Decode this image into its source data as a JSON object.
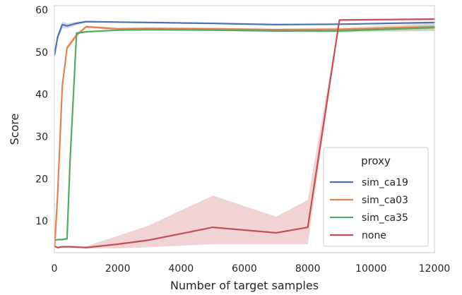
{
  "chart_data": {
    "type": "line",
    "xlabel": "Number of target samples",
    "ylabel": "Score",
    "xlim": [
      0,
      12000
    ],
    "ylim": [
      2.5,
      61
    ],
    "xticks": [
      0,
      2000,
      4000,
      6000,
      8000,
      10000,
      12000
    ],
    "xtick_labels": [
      "0",
      "2000",
      "4000",
      "6000",
      "8000",
      "10000",
      "12000"
    ],
    "yticks": [
      10,
      20,
      30,
      40,
      50,
      60
    ],
    "ytick_labels": [
      "10",
      "20",
      "30",
      "40",
      "50",
      "60"
    ],
    "grid": false,
    "legend": {
      "title": "proxy",
      "placement": "lower-right"
    },
    "series": [
      {
        "name": "sim_ca19",
        "color": "#4c72b0",
        "x": [
          10,
          100,
          250,
          400,
          700,
          1000,
          2000,
          3000,
          5000,
          7000,
          9000,
          12000
        ],
        "y": [
          49.5,
          53.5,
          56.5,
          56.2,
          56.8,
          57.2,
          57.1,
          57.0,
          56.8,
          56.5,
          56.6,
          57.0
        ],
        "lower": [
          48.5,
          52.8,
          55.6,
          55.6,
          56.4,
          57.0,
          57.0,
          56.9,
          56.7,
          56.4,
          56.5,
          56.8
        ],
        "upper": [
          50.5,
          54.2,
          57.2,
          56.8,
          57.2,
          57.4,
          57.2,
          57.1,
          56.9,
          56.6,
          56.7,
          57.2
        ]
      },
      {
        "name": "sim_ca03",
        "color": "#dd8452",
        "x": [
          10,
          100,
          250,
          400,
          700,
          1000,
          2000,
          3000,
          5000,
          7000,
          9000,
          12000
        ],
        "y": [
          4.0,
          16.0,
          42.0,
          51.0,
          54.0,
          56.0,
          55.5,
          55.6,
          55.5,
          55.3,
          55.4,
          56.0
        ],
        "lower": [
          3.5,
          14.0,
          40.5,
          50.3,
          53.5,
          55.7,
          55.2,
          55.3,
          55.2,
          55.0,
          55.0,
          55.0
        ],
        "upper": [
          4.5,
          18.0,
          43.5,
          51.7,
          54.5,
          56.3,
          55.8,
          55.9,
          55.8,
          55.6,
          55.8,
          57.0
        ]
      },
      {
        "name": "sim_ca35",
        "color": "#55a868",
        "x": [
          10,
          100,
          250,
          400,
          500,
          700,
          1000,
          2000,
          3000,
          5000,
          7000,
          9000,
          12000
        ],
        "y": [
          5.4,
          5.6,
          5.6,
          5.8,
          25.0,
          54.5,
          54.8,
          55.2,
          55.3,
          55.2,
          55.0,
          55.0,
          55.8
        ],
        "lower": [
          5.2,
          5.4,
          5.4,
          5.6,
          24.0,
          54.2,
          54.6,
          55.0,
          55.1,
          55.0,
          54.8,
          54.6,
          55.0
        ],
        "upper": [
          5.6,
          5.8,
          5.8,
          6.0,
          26.0,
          54.8,
          55.0,
          55.4,
          55.5,
          55.4,
          55.2,
          55.4,
          56.6
        ]
      },
      {
        "name": "none",
        "color": "#c44e52",
        "x": [
          10,
          100,
          250,
          500,
          1000,
          2000,
          3000,
          5000,
          7000,
          8000,
          9000,
          12000
        ],
        "y": [
          4.0,
          3.7,
          3.9,
          3.9,
          3.7,
          4.5,
          5.5,
          8.5,
          7.2,
          8.5,
          57.6,
          57.8
        ],
        "lower": [
          3.8,
          3.5,
          3.7,
          3.7,
          3.5,
          3.5,
          3.8,
          4.5,
          4.5,
          4.5,
          57.4,
          57.6
        ],
        "upper": [
          4.2,
          3.9,
          4.1,
          4.1,
          4.0,
          6.5,
          9.0,
          16.0,
          11.0,
          15.0,
          57.8,
          58.0
        ]
      }
    ]
  }
}
